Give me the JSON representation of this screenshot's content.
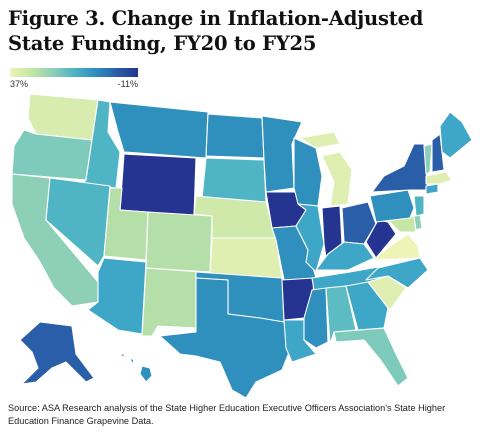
{
  "title": "Figure 3. Change in Inflation-Adjusted State Funding, FY20 to FY25",
  "legend": {
    "min_label": "37%",
    "max_label": "-11%"
  },
  "source": "Source: ASA Research analysis of the State Higher Education Executive Officers Association's State Higher Education Finance Grapevine Data.",
  "colors": {
    "lightest": "#eef3b6",
    "light": "#c5e6a4",
    "mid_light": "#8dd0b7",
    "mid": "#4fb4c4",
    "mid_dark": "#2f8fbd",
    "dark": "#2a5ea8",
    "darkest": "#253491"
  },
  "state_fills": {
    "WA": "#d8ecb0",
    "OR": "#7fcbbb",
    "CA": "#8dd0b7",
    "ID": "#4fb4c4",
    "NV": "#4fb4c4",
    "MT": "#2f8fbd",
    "WY": "#253491",
    "UT": "#b5dfa8",
    "AZ": "#3ea6c6",
    "CO": "#b5dfa8",
    "NM": "#b5dfa8",
    "ND": "#2f8fbd",
    "SD": "#4fb4c4",
    "NE": "#cfe9ab",
    "KS": "#dfefb2",
    "OK": "#2f8fbd",
    "TX": "#2f8fbd",
    "MN": "#2f8fbd",
    "IA": "#253491",
    "MO": "#2f8fbd",
    "AR": "#253491",
    "LA": "#3ea6c6",
    "WI": "#2f8fbd",
    "IL": "#3ea6c6",
    "MI": "#dfefb2",
    "IN": "#253491",
    "OH": "#2a5ea8",
    "KY": "#3ea6c6",
    "TN": "#3ea6c6",
    "MS": "#2f8fbd",
    "AL": "#5cbcc2",
    "GA": "#3ea6c6",
    "FL": "#7fcbbb",
    "SC": "#dfefb2",
    "NC": "#3ea6c6",
    "VA": "#eef3b6",
    "WV": "#253491",
    "PA": "#2f8fbd",
    "NY": "#2a5ea8",
    "VT": "#8dd0b7",
    "NH": "#2a5ea8",
    "ME": "#3ea6c6",
    "MA": "#dfefb2",
    "CT": "#3ea6c6",
    "NJ": "#4fb4c4",
    "DE": "#8dd0b7",
    "MD": "#c5e6a4",
    "AK": "#2a5ea8",
    "HI": "#2f8fbd"
  }
}
